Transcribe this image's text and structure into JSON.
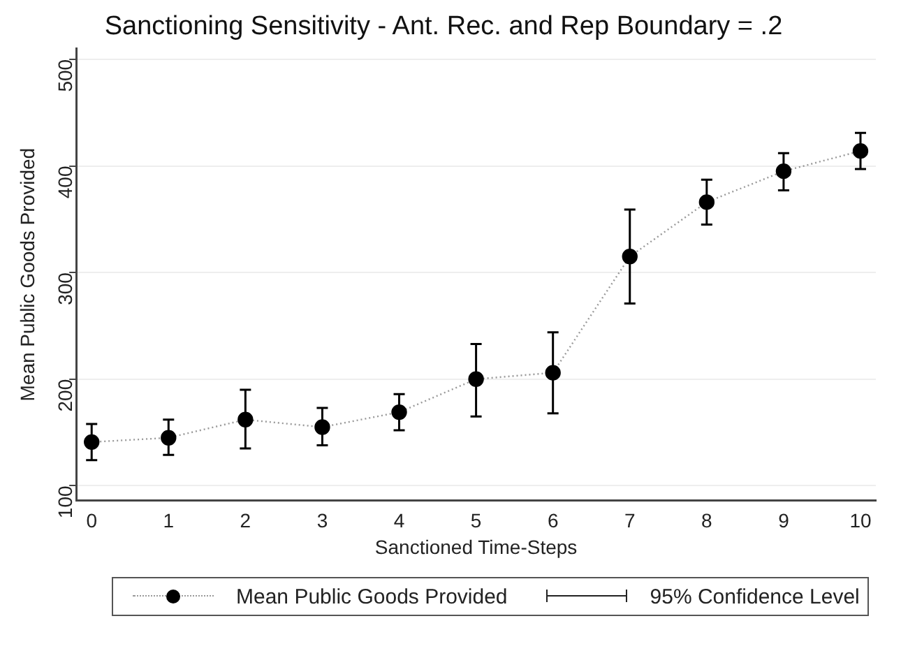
{
  "chart_data": {
    "type": "line",
    "title": "Sanctioning Sensitivity - Ant. Rec. and Rep Boundary = .2",
    "xlabel": "Sanctioned Time-Steps",
    "ylabel": "Mean Public Goods Provided",
    "x": [
      0,
      1,
      2,
      3,
      4,
      5,
      6,
      7,
      8,
      9,
      10
    ],
    "series": [
      {
        "name": "Mean Public Goods Provided",
        "color": "#000000",
        "values": [
          141,
          145,
          162,
          155,
          169,
          200,
          206,
          315,
          366,
          395,
          414
        ],
        "errors": [
          [
            124,
            158
          ],
          [
            129,
            162
          ],
          [
            135,
            190
          ],
          [
            138,
            173
          ],
          [
            152,
            186
          ],
          [
            165,
            233
          ],
          [
            168,
            244
          ],
          [
            271,
            359
          ],
          [
            345,
            387
          ],
          [
            377,
            412
          ],
          [
            397,
            431
          ]
        ]
      }
    ],
    "annotations": [
      "95% Confidence Level"
    ],
    "xlim": [
      -0.2,
      10.2
    ],
    "xticks": [
      0,
      1,
      2,
      3,
      4,
      5,
      6,
      7,
      8,
      9,
      10
    ],
    "ylim": [
      86,
      510
    ],
    "yticks": [
      100,
      200,
      300,
      400,
      500
    ],
    "grid": "y",
    "legend": "bottom",
    "marker": "circle",
    "line_style": "dotted"
  }
}
